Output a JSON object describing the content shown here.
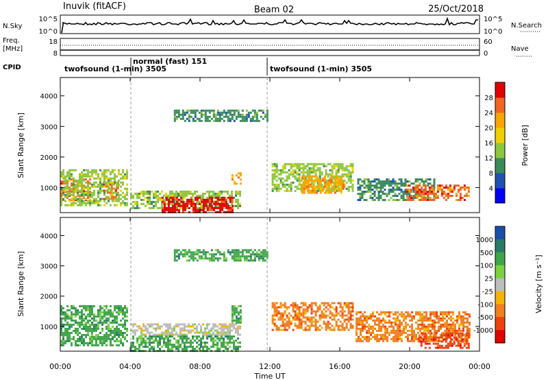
{
  "header": {
    "station": "Inuvik (fitACF)",
    "beam": "Beam 02",
    "date": "25/Oct/2018"
  },
  "nsky_panel": {
    "left_label": "N.Sky",
    "left_ticks": [
      "10^5",
      "10^0"
    ],
    "right_ticks": [
      "10^5",
      "10^0"
    ],
    "right_label": "N.Search"
  },
  "freq_panel": {
    "left_label_1": "Freq.",
    "left_label_2": "[MHz]",
    "left_ticks": [
      "18",
      "8"
    ],
    "right_ticks": [
      "60",
      "0"
    ],
    "right_label": "Nave"
  },
  "cpid": {
    "label": "CPID",
    "segments": [
      {
        "name": "twofsound (1-min) 3505",
        "start_hour": 0,
        "end_hour": 4
      },
      {
        "name": "normal (fast) 151",
        "start_hour": 4,
        "end_hour": 12
      },
      {
        "name": "twofsound (1-min) 3505",
        "start_hour": 12,
        "end_hour": 24
      }
    ]
  },
  "chart_data": [
    {
      "type": "heatmap",
      "name": "power",
      "ylabel": "Slant Range [km]",
      "y_ticks": [
        "1000",
        "2000",
        "3000",
        "4000"
      ],
      "ylim": [
        180,
        4600
      ],
      "xlim": [
        0,
        24
      ],
      "colorbar_label": "Power [dB]",
      "colorbar_ticks": [
        "4",
        "8",
        "12",
        "16",
        "20",
        "24",
        "28"
      ],
      "colorbar_colors": [
        "#0000ff",
        "#2050b0",
        "#3a8a5a",
        "#8dc63f",
        "#f0d000",
        "#f7a600",
        "#f26522",
        "#e00000"
      ],
      "regions": [
        {
          "t0": 0.0,
          "t1": 1.7,
          "r0": 600,
          "r1": 1300,
          "level": 6
        },
        {
          "t0": 2.3,
          "t1": 3.3,
          "r0": 650,
          "r1": 1200,
          "level": 6
        },
        {
          "t0": 0.0,
          "t1": 3.8,
          "r0": 400,
          "r1": 1600,
          "level": 3
        },
        {
          "t0": 4.0,
          "t1": 10.3,
          "r0": 300,
          "r1": 900,
          "level": 3
        },
        {
          "t0": 5.8,
          "t1": 9.9,
          "r0": 200,
          "r1": 700,
          "level": 7
        },
        {
          "t0": 9.8,
          "t1": 10.3,
          "r0": 1100,
          "r1": 1500,
          "level": 5
        },
        {
          "t0": 12.1,
          "t1": 16.8,
          "r0": 900,
          "r1": 1800,
          "level": 3
        },
        {
          "t0": 13.8,
          "t1": 16.2,
          "r0": 800,
          "r1": 1400,
          "level": 5
        },
        {
          "t0": 17.0,
          "t1": 21.4,
          "r0": 600,
          "r1": 1300,
          "level": 2
        },
        {
          "t0": 19.8,
          "t1": 23.4,
          "r0": 600,
          "r1": 1100,
          "level": 6
        },
        {
          "t0": 6.5,
          "t1": 11.8,
          "r0": 3150,
          "r1": 3550,
          "level": 2
        }
      ]
    },
    {
      "type": "heatmap",
      "name": "velocity",
      "ylabel": "Slant Range [km]",
      "y_ticks": [
        "1000",
        "2000",
        "3000",
        "4000"
      ],
      "ylim": [
        180,
        4600
      ],
      "xlim": [
        0,
        24
      ],
      "colorbar_label": "Velocity [m s⁻¹]",
      "colorbar_ticks": [
        "1000",
        "500",
        "100",
        "25",
        "-25",
        "-100",
        "-500",
        "-1000"
      ],
      "colorbar_colors": [
        "#1a4fa8",
        "#2a7a6a",
        "#3fa54a",
        "#7bd142",
        "#bdbdbd",
        "#f5b400",
        "#f08020",
        "#f04010",
        "#e00000"
      ],
      "regions": [
        {
          "t0": 0.0,
          "t1": 3.8,
          "r0": 400,
          "r1": 1700,
          "level": 2
        },
        {
          "t0": 4.0,
          "t1": 10.3,
          "r0": 700,
          "r1": 1100,
          "level": 4
        },
        {
          "t0": 4.0,
          "t1": 10.3,
          "r0": 200,
          "r1": 700,
          "level": 2
        },
        {
          "t0": 9.8,
          "t1": 10.3,
          "r0": 1100,
          "r1": 1700,
          "level": 2
        },
        {
          "t0": 12.1,
          "t1": 16.8,
          "r0": 900,
          "r1": 1800,
          "level": 6
        },
        {
          "t0": 16.9,
          "t1": 23.4,
          "r0": 500,
          "r1": 1500,
          "level": 6
        },
        {
          "t0": 20.5,
          "t1": 23.4,
          "r0": 300,
          "r1": 800,
          "level": 7
        },
        {
          "t0": 6.5,
          "t1": 11.8,
          "r0": 3150,
          "r1": 3550,
          "level": 2
        }
      ]
    }
  ],
  "x_axis": {
    "ticks": [
      "00:00",
      "04:00",
      "08:00",
      "12:00",
      "16:00",
      "20:00",
      "00:00"
    ],
    "label": "Time UT"
  }
}
